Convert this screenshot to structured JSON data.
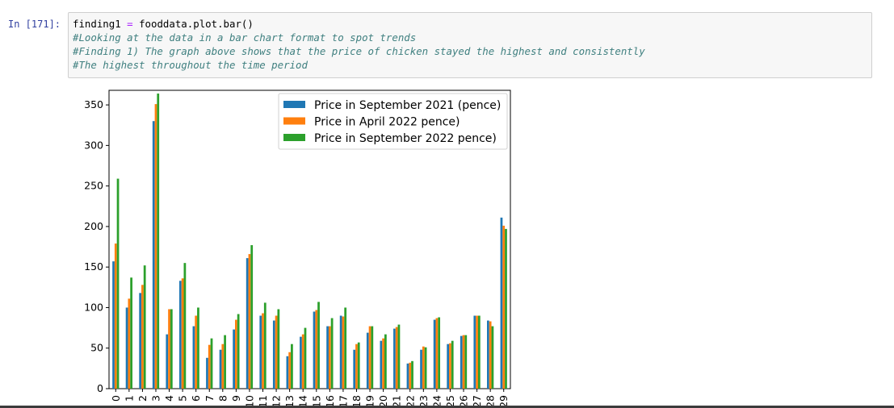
{
  "cell": {
    "prompt": "In [171]:",
    "code_var": "finding1",
    "code_op": "=",
    "code_call": "fooddata.plot.bar()",
    "comments": [
      "#Looking at the data in a bar chart format to spot trends",
      "#Finding 1) The graph above shows that the price of chicken stayed the highest and consistently",
      "#The highest throughout the time period"
    ]
  },
  "colors": {
    "series": [
      "#1f77b4",
      "#ff7f0e",
      "#2ca02c"
    ]
  },
  "chart_data": {
    "type": "bar",
    "title": "",
    "xlabel": "",
    "ylabel": "",
    "ylim": [
      0,
      368
    ],
    "yticks": [
      0,
      50,
      100,
      150,
      200,
      250,
      300,
      350
    ],
    "grid": false,
    "legend_position": "top-right",
    "categories": [
      "0",
      "1",
      "2",
      "3",
      "4",
      "5",
      "6",
      "7",
      "8",
      "9",
      "10",
      "11",
      "12",
      "13",
      "14",
      "15",
      "16",
      "17",
      "18",
      "19",
      "20",
      "21",
      "22",
      "23",
      "24",
      "25",
      "26",
      "27",
      "28",
      "29"
    ],
    "series": [
      {
        "name": "Price in September 2021 (pence)",
        "values": [
          157,
          100,
          118,
          330,
          67,
          133,
          77,
          38,
          48,
          73,
          161,
          90,
          84,
          40,
          64,
          95,
          77,
          90,
          48,
          69,
          59,
          74,
          31,
          48,
          85,
          55,
          65,
          90,
          84,
          211
        ]
      },
      {
        "name": "Price in April 2022 pence)",
        "values": [
          179,
          111,
          128,
          351,
          98,
          136,
          90,
          54,
          55,
          85,
          166,
          93,
          90,
          45,
          67,
          97,
          77,
          89,
          55,
          77,
          62,
          76,
          32,
          52,
          87,
          56,
          66,
          90,
          83,
          201
        ]
      },
      {
        "name": "Price in September 2022 pence)",
        "values": [
          259,
          137,
          152,
          364,
          98,
          155,
          100,
          62,
          66,
          92,
          177,
          106,
          98,
          55,
          75,
          107,
          87,
          100,
          57,
          77,
          67,
          79,
          34,
          51,
          88,
          59,
          66,
          90,
          77,
          197
        ]
      }
    ]
  }
}
